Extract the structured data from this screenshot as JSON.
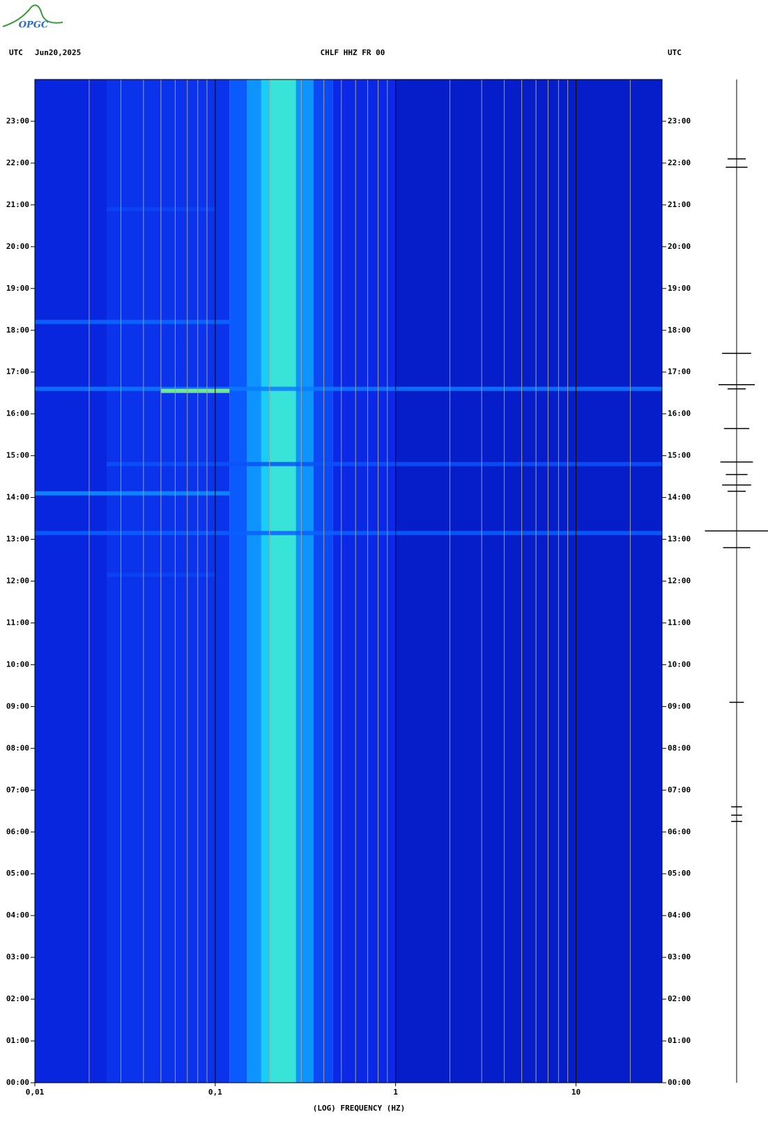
{
  "chart_data": {
    "type": "spectrogram",
    "logo": "OPGC",
    "title": "CHLF HHZ FR 00",
    "date": "Jun20,2025",
    "left_label": "UTC",
    "right_label": "UTC",
    "xlabel": "(LOG) FREQUENCY (HZ)",
    "log_x": true,
    "xlim": [
      0.01,
      30
    ],
    "xticks": [
      {
        "value": 0.01,
        "label": "0,01"
      },
      {
        "value": 0.1,
        "label": "0,1"
      },
      1,
      10
    ],
    "xgrid": [
      0.02,
      0.03,
      0.04,
      0.05,
      0.06,
      0.07,
      0.08,
      0.09,
      0.2,
      0.3,
      0.4,
      0.5,
      0.6,
      0.7,
      0.8,
      0.9,
      2,
      3,
      4,
      5,
      6,
      7,
      8,
      9,
      20
    ],
    "ylim": [
      0,
      24
    ],
    "yticks": [
      {
        "value": 0,
        "label": "00:00"
      },
      {
        "value": 1,
        "label": "01:00"
      },
      {
        "value": 2,
        "label": "02:00"
      },
      {
        "value": 3,
        "label": "03:00"
      },
      {
        "value": 4,
        "label": "04:00"
      },
      {
        "value": 5,
        "label": "05:00"
      },
      {
        "value": 6,
        "label": "06:00"
      },
      {
        "value": 7,
        "label": "07:00"
      },
      {
        "value": 8,
        "label": "08:00"
      },
      {
        "value": 9,
        "label": "09:00"
      },
      {
        "value": 10,
        "label": "10:00"
      },
      {
        "value": 11,
        "label": "11:00"
      },
      {
        "value": 12,
        "label": "12:00"
      },
      {
        "value": 13,
        "label": "13:00"
      },
      {
        "value": 14,
        "label": "14:00"
      },
      {
        "value": 15,
        "label": "15:00"
      },
      {
        "value": 16,
        "label": "16:00"
      },
      {
        "value": 17,
        "label": "17:00"
      },
      {
        "value": 18,
        "label": "18:00"
      },
      {
        "value": 19,
        "label": "19:00"
      },
      {
        "value": 20,
        "label": "20:00"
      },
      {
        "value": 21,
        "label": "21:00"
      },
      {
        "value": 22,
        "label": "22:00"
      },
      {
        "value": 23,
        "label": "23:00"
      }
    ],
    "colormap": [
      "#0010a0",
      "#0a28e6",
      "#0a60ff",
      "#10c8ff",
      "#60ffb0",
      "#f0ff20"
    ],
    "spectrum": {
      "bins": [
        0.01,
        0.025,
        0.12,
        0.15,
        0.18,
        0.2,
        0.28,
        0.35,
        0.45,
        1,
        30
      ],
      "intensity": [
        0.18,
        0.24,
        0.38,
        0.5,
        0.62,
        0.7,
        0.5,
        0.32,
        0.2,
        0.12
      ]
    },
    "events": [
      {
        "time": 20.9,
        "fmin": 0.025,
        "fmax": 0.1,
        "intensity": 0.3
      },
      {
        "time": 18.2,
        "fmin": 0.01,
        "fmax": 0.12,
        "intensity": 0.42
      },
      {
        "time": 16.6,
        "fmin": 0.01,
        "fmax": 30,
        "intensity": 0.45
      },
      {
        "time": 16.55,
        "fmin": 0.05,
        "fmax": 0.12,
        "intensity": 0.85
      },
      {
        "time": 14.8,
        "fmin": 0.025,
        "fmax": 30,
        "intensity": 0.35
      },
      {
        "time": 14.1,
        "fmin": 0.01,
        "fmax": 0.12,
        "intensity": 0.5
      },
      {
        "time": 13.15,
        "fmin": 0.01,
        "fmax": 30,
        "intensity": 0.4
      },
      {
        "time": 12.15,
        "fmin": 0.025,
        "fmax": 0.1,
        "intensity": 0.3
      }
    ],
    "trace": {
      "times": [
        22.1,
        21.9,
        17.45,
        16.7,
        16.6,
        15.65,
        14.85,
        14.55,
        14.3,
        14.15,
        13.2,
        12.8,
        9.1,
        6.6,
        6.4,
        6.25
      ],
      "amplitudes": [
        10,
        12,
        16,
        20,
        10,
        14,
        18,
        12,
        16,
        10,
        35,
        15,
        8,
        6,
        6,
        6
      ]
    }
  }
}
